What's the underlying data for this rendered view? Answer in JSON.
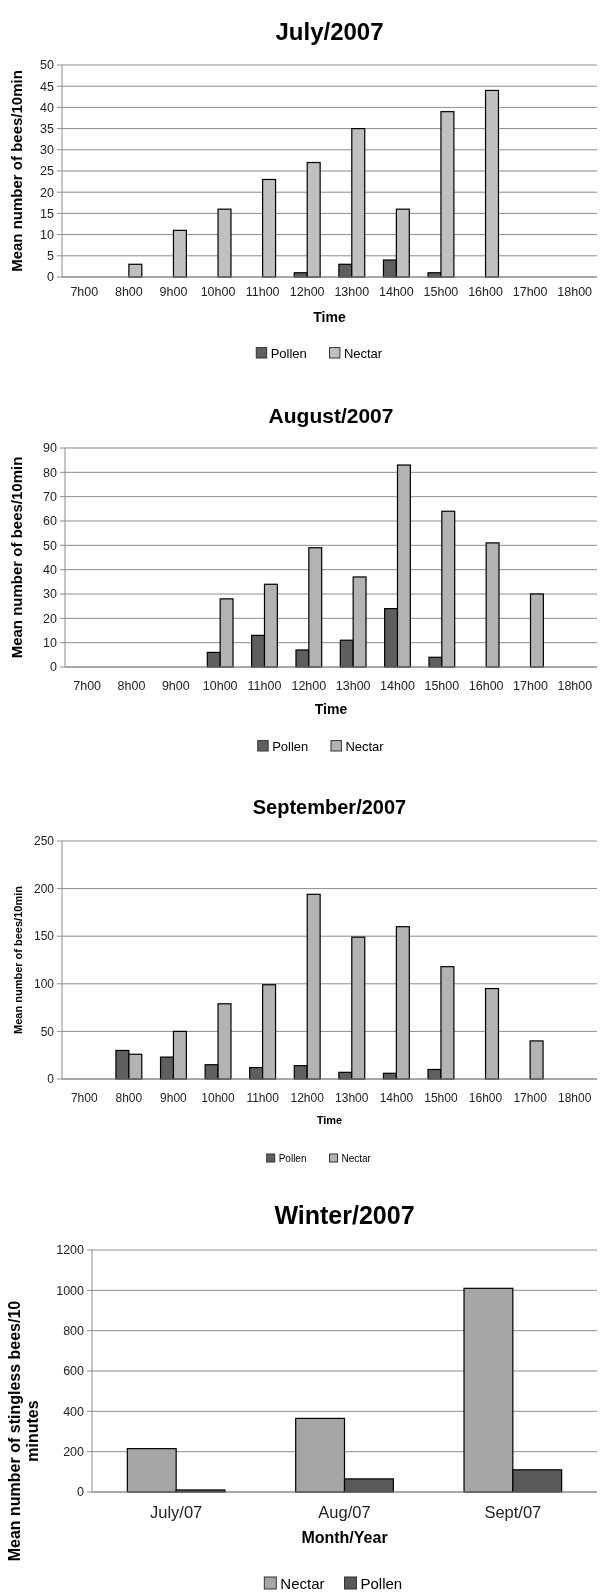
{
  "chart_data": [
    {
      "type": "bar",
      "title": "July/2007",
      "xlabel": "Time",
      "ylabel": "Mean number of bees/10min",
      "categories": [
        "7h00",
        "8h00",
        "9h00",
        "10h00",
        "11h00",
        "12h00",
        "13h00",
        "14h00",
        "15h00",
        "16h00",
        "17h00",
        "18h00"
      ],
      "series": [
        {
          "name": "Pollen",
          "color": "#5f5f5f",
          "values": [
            0,
            0,
            0,
            0,
            0,
            1,
            3,
            4,
            1,
            0,
            0,
            0
          ]
        },
        {
          "name": "Nectar",
          "color": "#c0c0c0",
          "values": [
            0,
            3,
            11,
            16,
            23,
            27,
            35,
            16,
            39,
            44,
            0,
            0
          ]
        }
      ],
      "ylim": [
        0,
        50
      ],
      "yticks": [
        0,
        5,
        10,
        15,
        20,
        25,
        30,
        35,
        40,
        45,
        50
      ],
      "grid": "y",
      "legend": "bottom"
    },
    {
      "type": "bar",
      "title": "August/2007",
      "xlabel": "Time",
      "ylabel": "Mean number of bees/10min",
      "categories": [
        "7h00",
        "8h00",
        "9h00",
        "10h00",
        "11h00",
        "12h00",
        "13h00",
        "14h00",
        "15h00",
        "16h00",
        "17h00",
        "18h00"
      ],
      "series": [
        {
          "name": "Pollen",
          "color": "#5f5f5f",
          "values": [
            0,
            0,
            0,
            6,
            13,
            7,
            11,
            24,
            4,
            0,
            0,
            0
          ]
        },
        {
          "name": "Nectar",
          "color": "#b3b3b3",
          "values": [
            0,
            0,
            0,
            28,
            34,
            49,
            37,
            83,
            64,
            51,
            30,
            0
          ]
        }
      ],
      "ylim": [
        0,
        90
      ],
      "yticks": [
        0,
        10,
        20,
        30,
        40,
        50,
        60,
        70,
        80,
        90
      ],
      "grid": "y",
      "legend": "bottom"
    },
    {
      "type": "bar",
      "title": "September/2007",
      "xlabel": "Time",
      "ylabel": "Mean number of bees/10min",
      "categories": [
        "7h00",
        "8h00",
        "9h00",
        "10h00",
        "11h00",
        "12h00",
        "13h00",
        "14h00",
        "15h00",
        "16h00",
        "17h00",
        "18h00"
      ],
      "series": [
        {
          "name": "Pollen",
          "color": "#5f5f5f",
          "values": [
            0,
            30,
            23,
            15,
            12,
            14,
            7,
            6,
            10,
            0,
            0,
            0
          ]
        },
        {
          "name": "Nectar",
          "color": "#b3b3b3",
          "values": [
            0,
            26,
            50,
            79,
            99,
            194,
            149,
            160,
            118,
            95,
            40,
            0
          ]
        }
      ],
      "ylim": [
        0,
        250
      ],
      "yticks": [
        0,
        50,
        100,
        150,
        200,
        250
      ],
      "grid": "y",
      "legend": "bottom"
    },
    {
      "type": "bar",
      "title": "Winter/2007",
      "xlabel": "Month/Year",
      "ylabel": "Mean number of stingless bees/10 minutes",
      "categories": [
        "July/07",
        "Aug/07",
        "Sept/07"
      ],
      "series": [
        {
          "name": "Nectar",
          "color": "#a6a6a6",
          "values": [
            215,
            365,
            1010
          ]
        },
        {
          "name": "Pollen",
          "color": "#595959",
          "values": [
            10,
            65,
            110
          ]
        }
      ],
      "ylim": [
        0,
        1200
      ],
      "yticks": [
        0,
        200,
        400,
        600,
        800,
        1000,
        1200
      ],
      "grid": "y",
      "legend": "bottom"
    }
  ]
}
